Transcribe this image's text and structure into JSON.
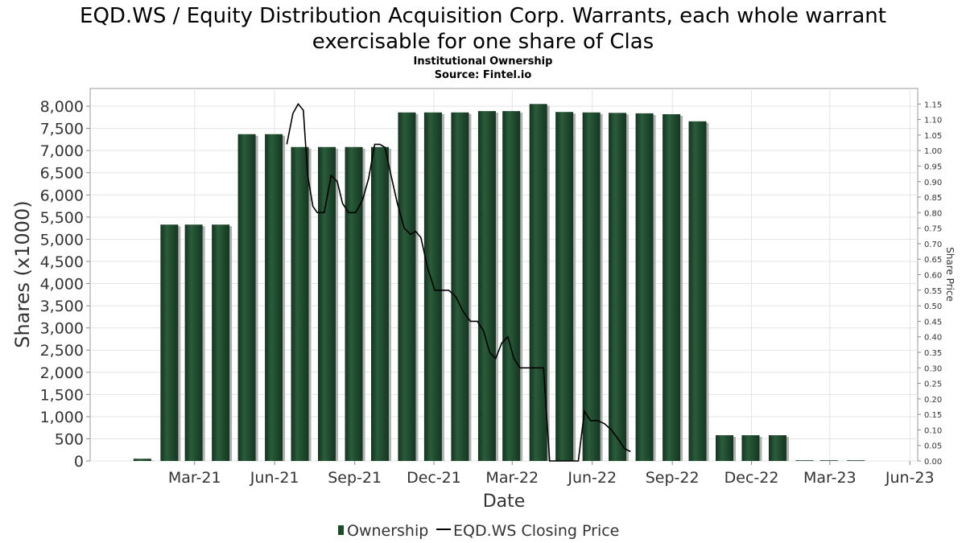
{
  "chart_data": {
    "type": "bar",
    "title_line1": "EQD.WS / Equity Distribution Acquisition Corp. Warrants, each whole warrant",
    "title_line2": "exercisable for one share of Clas",
    "subtitle": "Institutional Ownership",
    "source": "Source: Fintel.io",
    "xlabel": "Date",
    "ylabel": "Shares (x1000)",
    "y2label": "Share Price",
    "ylim": [
      0,
      8400
    ],
    "y2lim": [
      0,
      1.2
    ],
    "yticks": [
      "0",
      "500",
      "1,000",
      "1,500",
      "2,000",
      "2,500",
      "3,000",
      "3,500",
      "4,000",
      "4,500",
      "5,000",
      "5,500",
      "6,000",
      "6,500",
      "7,000",
      "7,500",
      "8,000"
    ],
    "y2ticks": [
      "0.00",
      "0.05",
      "0.10",
      "0.15",
      "0.20",
      "0.25",
      "0.30",
      "0.35",
      "0.40",
      "0.45",
      "0.50",
      "0.55",
      "0.60",
      "0.65",
      "0.70",
      "0.75",
      "0.80",
      "0.85",
      "0.90",
      "0.95",
      "1.00",
      "1.05",
      "1.10",
      "1.15"
    ],
    "xticks": [
      {
        "label": "Mar-21",
        "date": "2021-03-01"
      },
      {
        "label": "Jun-21",
        "date": "2021-06-01"
      },
      {
        "label": "Sep-21",
        "date": "2021-09-01"
      },
      {
        "label": "Dec-21",
        "date": "2021-12-01"
      },
      {
        "label": "Mar-22",
        "date": "2022-03-01"
      },
      {
        "label": "Jun-22",
        "date": "2022-06-01"
      },
      {
        "label": "Sep-22",
        "date": "2022-09-01"
      },
      {
        "label": "Dec-22",
        "date": "2022-12-01"
      },
      {
        "label": "Mar-23",
        "date": "2023-03-01"
      },
      {
        "label": "Jun-23",
        "date": "2023-06-01"
      }
    ],
    "xlim": [
      "2020-11-01",
      "2023-06-10"
    ],
    "grid": true,
    "legend_position": "bottom",
    "series": [
      {
        "name": "Ownership",
        "type": "bar",
        "color": "#1f4a2e",
        "points": [
          {
            "date": "2020-12-31",
            "value": 50
          },
          {
            "date": "2021-01-31",
            "value": 5330
          },
          {
            "date": "2021-02-28",
            "value": 5330
          },
          {
            "date": "2021-03-31",
            "value": 5330
          },
          {
            "date": "2021-04-30",
            "value": 7370
          },
          {
            "date": "2021-05-31",
            "value": 7370
          },
          {
            "date": "2021-06-30",
            "value": 7080
          },
          {
            "date": "2021-07-31",
            "value": 7080
          },
          {
            "date": "2021-08-31",
            "value": 7080
          },
          {
            "date": "2021-09-30",
            "value": 7080
          },
          {
            "date": "2021-10-31",
            "value": 7860
          },
          {
            "date": "2021-11-30",
            "value": 7860
          },
          {
            "date": "2021-12-31",
            "value": 7860
          },
          {
            "date": "2022-01-31",
            "value": 7890
          },
          {
            "date": "2022-02-28",
            "value": 7890
          },
          {
            "date": "2022-03-31",
            "value": 8050
          },
          {
            "date": "2022-04-30",
            "value": 7870
          },
          {
            "date": "2022-05-31",
            "value": 7860
          },
          {
            "date": "2022-06-30",
            "value": 7850
          },
          {
            "date": "2022-07-31",
            "value": 7840
          },
          {
            "date": "2022-08-31",
            "value": 7820
          },
          {
            "date": "2022-09-30",
            "value": 7660
          },
          {
            "date": "2022-10-31",
            "value": 580
          },
          {
            "date": "2022-11-30",
            "value": 580
          },
          {
            "date": "2022-12-31",
            "value": 580
          },
          {
            "date": "2023-01-31",
            "value": 15
          },
          {
            "date": "2023-02-28",
            "value": 15
          },
          {
            "date": "2023-03-31",
            "value": 15
          }
        ]
      },
      {
        "name": "EQD.WS Closing Price",
        "type": "line",
        "color": "#000000",
        "points": [
          {
            "date": "2021-06-15",
            "value": 1.02
          },
          {
            "date": "2021-06-22",
            "value": 1.12
          },
          {
            "date": "2021-06-28",
            "value": 1.15
          },
          {
            "date": "2021-07-04",
            "value": 1.13
          },
          {
            "date": "2021-07-09",
            "value": 0.92
          },
          {
            "date": "2021-07-15",
            "value": 0.82
          },
          {
            "date": "2021-07-20",
            "value": 0.8
          },
          {
            "date": "2021-07-28",
            "value": 0.8
          },
          {
            "date": "2021-08-05",
            "value": 0.92
          },
          {
            "date": "2021-08-12",
            "value": 0.9
          },
          {
            "date": "2021-08-18",
            "value": 0.83
          },
          {
            "date": "2021-08-25",
            "value": 0.8
          },
          {
            "date": "2021-09-02",
            "value": 0.8
          },
          {
            "date": "2021-09-10",
            "value": 0.84
          },
          {
            "date": "2021-09-17",
            "value": 0.91
          },
          {
            "date": "2021-09-24",
            "value": 1.02
          },
          {
            "date": "2021-09-30",
            "value": 1.02
          },
          {
            "date": "2021-10-06",
            "value": 1.01
          },
          {
            "date": "2021-10-12",
            "value": 0.93
          },
          {
            "date": "2021-10-20",
            "value": 0.83
          },
          {
            "date": "2021-10-28",
            "value": 0.75
          },
          {
            "date": "2021-11-04",
            "value": 0.73
          },
          {
            "date": "2021-11-10",
            "value": 0.74
          },
          {
            "date": "2021-11-16",
            "value": 0.72
          },
          {
            "date": "2021-11-24",
            "value": 0.62
          },
          {
            "date": "2021-12-02",
            "value": 0.55
          },
          {
            "date": "2021-12-10",
            "value": 0.55
          },
          {
            "date": "2021-12-18",
            "value": 0.55
          },
          {
            "date": "2021-12-26",
            "value": 0.53
          },
          {
            "date": "2022-01-04",
            "value": 0.48
          },
          {
            "date": "2022-01-12",
            "value": 0.45
          },
          {
            "date": "2022-01-20",
            "value": 0.45
          },
          {
            "date": "2022-01-27",
            "value": 0.42
          },
          {
            "date": "2022-02-03",
            "value": 0.35
          },
          {
            "date": "2022-02-10",
            "value": 0.33
          },
          {
            "date": "2022-02-17",
            "value": 0.38
          },
          {
            "date": "2022-02-24",
            "value": 0.4
          },
          {
            "date": "2022-03-03",
            "value": 0.33
          },
          {
            "date": "2022-03-10",
            "value": 0.3
          },
          {
            "date": "2022-03-17",
            "value": 0.3
          },
          {
            "date": "2022-03-24",
            "value": 0.3
          },
          {
            "date": "2022-03-31",
            "value": 0.3
          },
          {
            "date": "2022-04-06",
            "value": 0.3
          },
          {
            "date": "2022-04-13",
            "value": 0.0
          },
          {
            "date": "2022-04-20",
            "value": 0.0
          },
          {
            "date": "2022-04-27",
            "value": 0.0
          },
          {
            "date": "2022-05-03",
            "value": 0.0
          },
          {
            "date": "2022-05-10",
            "value": 0.0
          },
          {
            "date": "2022-05-16",
            "value": 0.0
          },
          {
            "date": "2022-05-23",
            "value": 0.16
          },
          {
            "date": "2022-05-30",
            "value": 0.13
          },
          {
            "date": "2022-06-07",
            "value": 0.13
          },
          {
            "date": "2022-06-15",
            "value": 0.12
          },
          {
            "date": "2022-06-23",
            "value": 0.1
          },
          {
            "date": "2022-07-01",
            "value": 0.07
          },
          {
            "date": "2022-07-08",
            "value": 0.04
          },
          {
            "date": "2022-07-15",
            "value": 0.03
          }
        ]
      }
    ]
  }
}
